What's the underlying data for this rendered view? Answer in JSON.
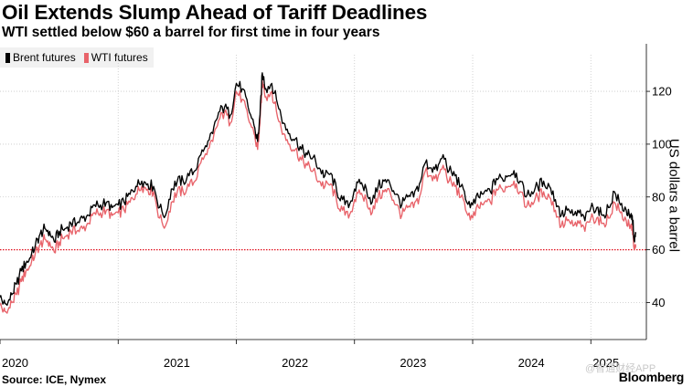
{
  "header": {
    "title": "Oil Extends Slump Ahead of Tariff Deadlines",
    "subtitle": "WTI settled below $60 a barrel for first time in four years"
  },
  "footer": {
    "source": "Source: ICE, Nymex",
    "brand": "Bloomberg",
    "watermark": "@智通财经APP"
  },
  "colors": {
    "brent": "#000000",
    "wti": "#e8636a",
    "reference": "#e0101e",
    "grid": "#c8c8c8",
    "legend_bg": "#f1f1f1"
  },
  "chart_data": {
    "type": "line",
    "title": "Oil Extends Slump Ahead of Tariff Deadlines",
    "subtitle": "WTI settled below $60 a barrel for first time in four years",
    "xlabel": "",
    "ylabel": "US dollars a barrel",
    "xlim": [
      2020.0,
      2025.47
    ],
    "ylim": [
      26,
      138
    ],
    "yticks": [
      40,
      60,
      80,
      100,
      120
    ],
    "ytick_labels": [
      "40",
      "60",
      "80",
      "100",
      "120"
    ],
    "xticks": [
      2020,
      2021,
      2022,
      2023,
      2024,
      2025
    ],
    "xtick_labels": [
      "2020",
      "2021",
      "2022",
      "2023",
      "2024",
      "2025"
    ],
    "reference_line": {
      "y": 60,
      "style": "dotted"
    },
    "legend": {
      "position": "top-left"
    },
    "series": [
      {
        "name": "Brent futures",
        "x": [
          2020.0,
          2020.03,
          2020.06,
          2020.1,
          2020.14,
          2020.18,
          2020.22,
          2020.26,
          2020.3,
          2020.34,
          2020.38,
          2020.42,
          2020.46,
          2020.5,
          2020.55,
          2020.6,
          2020.65,
          2020.7,
          2020.75,
          2020.8,
          2020.85,
          2020.9,
          2020.95,
          2021.0,
          2021.05,
          2021.1,
          2021.15,
          2021.2,
          2021.25,
          2021.3,
          2021.35,
          2021.4,
          2021.45,
          2021.5,
          2021.55,
          2021.6,
          2021.65,
          2021.7,
          2021.75,
          2021.8,
          2021.85,
          2021.9,
          2021.95,
          2022.0,
          2022.05,
          2022.1,
          2022.15,
          2022.18,
          2022.2,
          2022.22,
          2022.25,
          2022.3,
          2022.35,
          2022.4,
          2022.45,
          2022.5,
          2022.55,
          2022.6,
          2022.65,
          2022.7,
          2022.75,
          2022.8,
          2022.85,
          2022.9,
          2022.95,
          2023.0,
          2023.05,
          2023.1,
          2023.15,
          2023.2,
          2023.25,
          2023.3,
          2023.35,
          2023.4,
          2023.45,
          2023.5,
          2023.55,
          2023.6,
          2023.65,
          2023.7,
          2023.75,
          2023.8,
          2023.85,
          2023.9,
          2023.95,
          2024.0,
          2024.05,
          2024.1,
          2024.15,
          2024.2,
          2024.25,
          2024.3,
          2024.35,
          2024.4,
          2024.45,
          2024.5,
          2024.55,
          2024.6,
          2024.65,
          2024.7,
          2024.75,
          2024.8,
          2024.85,
          2024.9,
          2024.95,
          2025.0,
          2025.05,
          2025.1,
          2025.15,
          2025.2,
          2025.25,
          2025.3,
          2025.33,
          2025.35,
          2025.37,
          2025.38
        ],
        "values": [
          42,
          40,
          39,
          43,
          47,
          52,
          55,
          57,
          62,
          66,
          68,
          67,
          63,
          67,
          68,
          70,
          70,
          72,
          73,
          77,
          77,
          78,
          76,
          77,
          78,
          81,
          84,
          86,
          85,
          84,
          76,
          73,
          83,
          86,
          86,
          88,
          90,
          96,
          99,
          104,
          112,
          114,
          111,
          123,
          121,
          114,
          107,
          101,
          111,
          127,
          121,
          123,
          115,
          108,
          104,
          102,
          98,
          96,
          95,
          91,
          88,
          89,
          82,
          79,
          76,
          83,
          85,
          83,
          78,
          84,
          86,
          85,
          81,
          77,
          80,
          80,
          85,
          93,
          91,
          90,
          96,
          90,
          88,
          84,
          78,
          77,
          80,
          82,
          82,
          87,
          87,
          88,
          90,
          86,
          80,
          82,
          84,
          86,
          84,
          79,
          73,
          75,
          73,
          74,
          71,
          76,
          76,
          73,
          76,
          82,
          77,
          75,
          72,
          73,
          63,
          66
        ],
        "color": "#000000"
      },
      {
        "name": "WTI futures",
        "x": [
          2020.0,
          2020.03,
          2020.06,
          2020.1,
          2020.14,
          2020.18,
          2020.22,
          2020.26,
          2020.3,
          2020.34,
          2020.38,
          2020.42,
          2020.46,
          2020.5,
          2020.55,
          2020.6,
          2020.65,
          2020.7,
          2020.75,
          2020.8,
          2020.85,
          2020.9,
          2020.95,
          2021.0,
          2021.05,
          2021.1,
          2021.15,
          2021.2,
          2021.25,
          2021.3,
          2021.35,
          2021.4,
          2021.45,
          2021.5,
          2021.55,
          2021.6,
          2021.65,
          2021.7,
          2021.75,
          2021.8,
          2021.85,
          2021.9,
          2021.95,
          2022.0,
          2022.05,
          2022.1,
          2022.15,
          2022.18,
          2022.2,
          2022.22,
          2022.25,
          2022.3,
          2022.35,
          2022.4,
          2022.45,
          2022.5,
          2022.55,
          2022.6,
          2022.65,
          2022.7,
          2022.75,
          2022.8,
          2022.85,
          2022.9,
          2022.95,
          2023.0,
          2023.05,
          2023.1,
          2023.15,
          2023.2,
          2023.25,
          2023.3,
          2023.35,
          2023.4,
          2023.45,
          2023.5,
          2023.55,
          2023.6,
          2023.65,
          2023.7,
          2023.75,
          2023.8,
          2023.85,
          2023.9,
          2023.95,
          2024.0,
          2024.05,
          2024.1,
          2024.15,
          2024.2,
          2024.25,
          2024.3,
          2024.35,
          2024.4,
          2024.45,
          2024.5,
          2024.55,
          2024.6,
          2024.65,
          2024.7,
          2024.75,
          2024.8,
          2024.85,
          2024.9,
          2024.95,
          2025.0,
          2025.05,
          2025.1,
          2025.15,
          2025.2,
          2025.25,
          2025.3,
          2025.33,
          2025.35,
          2025.37,
          2025.38
        ],
        "values": [
          39,
          37,
          36,
          40,
          43,
          48,
          52,
          54,
          59,
          62,
          64,
          63,
          59,
          63,
          65,
          67,
          67,
          68,
          70,
          74,
          74,
          75,
          73,
          74,
          75,
          78,
          81,
          84,
          83,
          82,
          72,
          69,
          78,
          82,
          82,
          84,
          86,
          93,
          96,
          101,
          109,
          112,
          108,
          120,
          117,
          110,
          104,
          98,
          108,
          124,
          118,
          120,
          110,
          104,
          100,
          98,
          94,
          92,
          90,
          86,
          84,
          85,
          78,
          75,
          72,
          79,
          81,
          79,
          74,
          80,
          82,
          82,
          77,
          73,
          76,
          76,
          80,
          90,
          88,
          86,
          92,
          86,
          84,
          80,
          74,
          72,
          76,
          78,
          78,
          83,
          83,
          84,
          86,
          82,
          76,
          78,
          80,
          82,
          80,
          75,
          69,
          71,
          69,
          70,
          67,
          72,
          72,
          70,
          72,
          78,
          74,
          71,
          68,
          69,
          60,
          61
        ],
        "color": "#e8636a"
      }
    ]
  }
}
